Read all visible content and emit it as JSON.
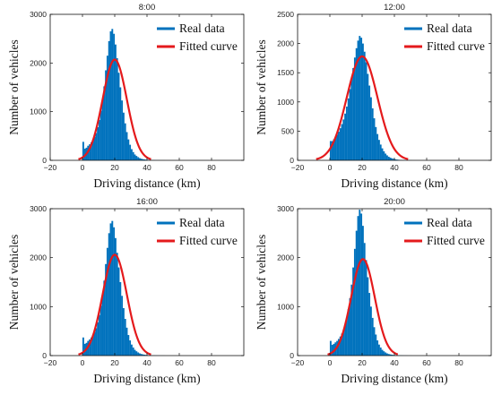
{
  "chart_data": [
    {
      "type": "histogram",
      "title": "8:00",
      "xlabel": "Driving distance (km)",
      "ylabel": "Number of vehicles",
      "xlim": [
        -20,
        100
      ],
      "ylim": [
        0,
        3000
      ],
      "xticks": [
        -20,
        0,
        20,
        40,
        60,
        80
      ],
      "yticks": [
        0,
        1000,
        2000,
        3000
      ],
      "legend_position": "top-right",
      "series": [
        {
          "name": "Real data",
          "kind": "histogram",
          "color": "#0072BD",
          "x": [
            0,
            1,
            2,
            3,
            4,
            5,
            6,
            7,
            8,
            9,
            10,
            11,
            12,
            13,
            14,
            15,
            16,
            17,
            18,
            19,
            20,
            21,
            22,
            23,
            24,
            25,
            26,
            27,
            28,
            29,
            30,
            31,
            32,
            33,
            34,
            35,
            36,
            37,
            38,
            39,
            40,
            41,
            42,
            43,
            44,
            45,
            46,
            47,
            48,
            49,
            50
          ],
          "values": [
            380,
            240,
            260,
            300,
            330,
            370,
            420,
            480,
            560,
            680,
            830,
            1020,
            1250,
            1520,
            1850,
            2150,
            2450,
            2650,
            2700,
            2600,
            2380,
            2100,
            1800,
            1500,
            1230,
            980,
            760,
            580,
            430,
            320,
            230,
            170,
            120,
            90,
            65,
            45,
            32,
            24,
            18,
            14,
            10,
            8,
            6,
            5,
            4,
            3,
            2,
            2,
            1,
            1,
            1
          ]
        },
        {
          "name": "Fitted curve",
          "kind": "normal",
          "color": "#E41A1C",
          "mean": 20,
          "sd": 7.5,
          "peak": 2070
        }
      ]
    },
    {
      "type": "histogram",
      "title": "12:00",
      "xlabel": "Driving distance (km)",
      "ylabel": "Number of vehicles",
      "xlim": [
        -20,
        100
      ],
      "ylim": [
        0,
        2500
      ],
      "xticks": [
        -20,
        0,
        20,
        40,
        60,
        80
      ],
      "yticks": [
        0,
        500,
        1000,
        1500,
        2000,
        2500
      ],
      "legend_position": "top-right",
      "series": [
        {
          "name": "Real data",
          "kind": "histogram",
          "color": "#0072BD",
          "x": [
            0,
            1,
            2,
            3,
            4,
            5,
            6,
            7,
            8,
            9,
            10,
            11,
            12,
            13,
            14,
            15,
            16,
            17,
            18,
            19,
            20,
            21,
            22,
            23,
            24,
            25,
            26,
            27,
            28,
            29,
            30,
            31,
            32,
            33,
            34,
            35,
            36,
            37,
            38,
            39,
            40,
            41,
            42,
            43,
            44,
            45,
            46,
            47,
            48,
            49,
            50
          ],
          "values": [
            330,
            330,
            360,
            400,
            440,
            490,
            550,
            620,
            700,
            800,
            920,
            1060,
            1220,
            1400,
            1580,
            1760,
            1920,
            2050,
            2130,
            2100,
            2000,
            1860,
            1680,
            1480,
            1280,
            1080,
            890,
            720,
            570,
            450,
            350,
            270,
            205,
            155,
            115,
            85,
            62,
            46,
            34,
            25,
            18,
            13,
            10,
            7,
            5,
            4,
            3,
            2,
            2,
            1,
            1
          ]
        },
        {
          "name": "Fitted curve",
          "kind": "normal",
          "color": "#E41A1C",
          "mean": 20,
          "sd": 9.5,
          "peak": 1780
        }
      ]
    },
    {
      "type": "histogram",
      "title": "16:00",
      "xlabel": "Driving distance (km)",
      "ylabel": "Number of vehicles",
      "xlim": [
        -20,
        100
      ],
      "ylim": [
        0,
        3000
      ],
      "xticks": [
        -20,
        0,
        20,
        40,
        60,
        80
      ],
      "yticks": [
        0,
        1000,
        2000,
        3000
      ],
      "legend_position": "top-right",
      "series": [
        {
          "name": "Real data",
          "kind": "histogram",
          "color": "#0072BD",
          "x": [
            0,
            1,
            2,
            3,
            4,
            5,
            6,
            7,
            8,
            9,
            10,
            11,
            12,
            13,
            14,
            15,
            16,
            17,
            18,
            19,
            20,
            21,
            22,
            23,
            24,
            25,
            26,
            27,
            28,
            29,
            30,
            31,
            32,
            33,
            34,
            35,
            36,
            37,
            38,
            39,
            40,
            41,
            42,
            43,
            44,
            45,
            46,
            47,
            48,
            49,
            50
          ],
          "values": [
            370,
            240,
            260,
            300,
            330,
            370,
            420,
            480,
            560,
            680,
            830,
            1020,
            1250,
            1530,
            1870,
            2200,
            2500,
            2700,
            2750,
            2620,
            2400,
            2100,
            1800,
            1500,
            1220,
            970,
            750,
            570,
            420,
            310,
            225,
            165,
            118,
            88,
            64,
            45,
            32,
            24,
            18,
            14,
            10,
            8,
            6,
            5,
            4,
            3,
            2,
            2,
            1,
            1,
            1
          ]
        },
        {
          "name": "Fitted curve",
          "kind": "normal",
          "color": "#E41A1C",
          "mean": 20,
          "sd": 7.5,
          "peak": 2060
        }
      ]
    },
    {
      "type": "histogram",
      "title": "20:00",
      "xlabel": "Driving distance (km)",
      "ylabel": "Number of vehicles",
      "xlim": [
        -20,
        100
      ],
      "ylim": [
        0,
        3000
      ],
      "xticks": [
        -20,
        0,
        20,
        40,
        60,
        80
      ],
      "yticks": [
        0,
        1000,
        2000,
        3000
      ],
      "legend_position": "top-right",
      "series": [
        {
          "name": "Real data",
          "kind": "histogram",
          "color": "#0072BD",
          "x": [
            0,
            1,
            2,
            3,
            4,
            5,
            6,
            7,
            8,
            9,
            10,
            11,
            12,
            13,
            14,
            15,
            16,
            17,
            18,
            19,
            20,
            21,
            22,
            23,
            24,
            25,
            26,
            27,
            28,
            29,
            30,
            31,
            32,
            33,
            34,
            35,
            36,
            37,
            38,
            39,
            40,
            41,
            42,
            43,
            44,
            45,
            46,
            47,
            48,
            49,
            50
          ],
          "values": [
            300,
            220,
            240,
            270,
            300,
            340,
            390,
            450,
            520,
            630,
            770,
            950,
            1170,
            1450,
            1800,
            2180,
            2550,
            2850,
            2980,
            2900,
            2650,
            2300,
            1950,
            1600,
            1280,
            1000,
            770,
            580,
            430,
            310,
            225,
            165,
            118,
            88,
            64,
            45,
            32,
            24,
            18,
            14,
            10,
            8,
            6,
            5,
            4,
            3,
            2,
            2,
            1,
            1,
            1
          ]
        },
        {
          "name": "Fitted curve",
          "kind": "normal",
          "color": "#E41A1C",
          "mean": 20.5,
          "sd": 7.3,
          "peak": 1970
        }
      ]
    }
  ]
}
